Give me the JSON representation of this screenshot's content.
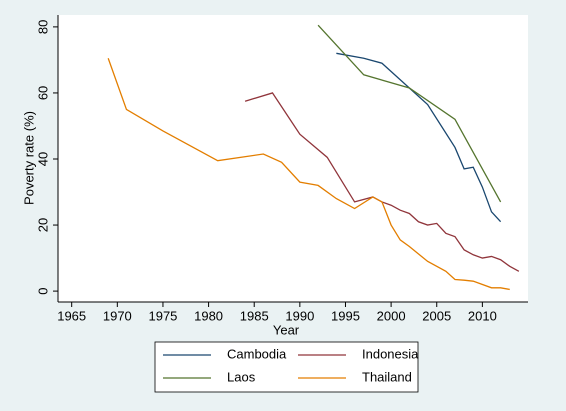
{
  "chart_data": {
    "type": "line",
    "x_label": "Year",
    "y_label": "Poverty rate (%)",
    "xlim": [
      1963.5,
      2015
    ],
    "xticks": [
      1965,
      1970,
      1975,
      1980,
      1985,
      1990,
      1995,
      2000,
      2005,
      2010
    ],
    "ylim": [
      -3.3,
      83.6
    ],
    "yticks": [
      0,
      20,
      40,
      60,
      80
    ],
    "legend_position": "bottom",
    "series": [
      {
        "name": "Cambodia",
        "color": "#1a476f",
        "x": [
          1994,
          1997,
          1999,
          2004,
          2007,
          2008,
          2009,
          2010,
          2011,
          2012
        ],
        "values": [
          72,
          70.5,
          69,
          56.5,
          43.5,
          37,
          37.5,
          31.5,
          24,
          21
        ]
      },
      {
        "name": "Indonesia",
        "color": "#90353b",
        "x": [
          1984,
          1987,
          1990,
          1993,
          1996,
          1998,
          1999,
          2000,
          2001,
          2002,
          2003,
          2004,
          2005,
          2006,
          2007,
          2008,
          2009,
          2010,
          2011,
          2012,
          2013,
          2014
        ],
        "values": [
          57.5,
          60,
          47.5,
          40.5,
          27,
          28.5,
          27,
          26,
          24.5,
          23.5,
          21,
          20,
          20.5,
          17.5,
          16.5,
          12.5,
          11,
          10,
          10.5,
          9.5,
          7.5,
          6
        ]
      },
      {
        "name": "Laos",
        "color": "#55752f",
        "x": [
          1992,
          1997,
          2002,
          2007,
          2012
        ],
        "values": [
          80.5,
          65.5,
          61.5,
          52,
          27
        ]
      },
      {
        "name": "Thailand",
        "color": "#e37e00",
        "x": [
          1969,
          1971,
          1975,
          1981,
          1986,
          1988,
          1990,
          1992,
          1994,
          1996,
          1998,
          1999,
          2000,
          2001,
          2002,
          2004,
          2006,
          2007,
          2008,
          2009,
          2011,
          2012,
          2013
        ],
        "values": [
          70.5,
          55,
          48.5,
          39.5,
          41.5,
          39,
          33,
          32,
          28,
          25,
          28.5,
          27,
          20,
          15.5,
          13.5,
          9,
          6,
          3.5,
          3.3,
          3,
          1,
          1,
          0.5
        ]
      }
    ]
  }
}
